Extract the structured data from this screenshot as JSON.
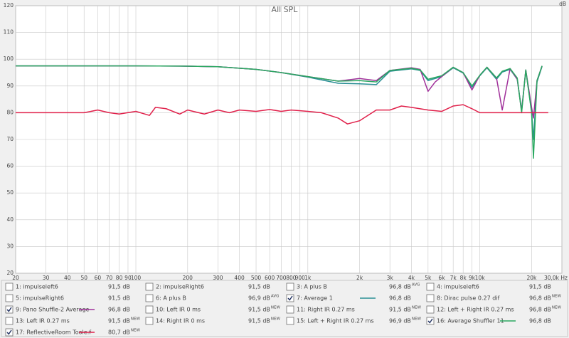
{
  "chart_data": {
    "type": "line",
    "title": "All SPL",
    "y_label": "dB",
    "xscale": "log",
    "grid": true,
    "xlim": [
      20,
      30000
    ],
    "ylim": [
      20,
      120
    ],
    "yticks": [
      20,
      30,
      40,
      50,
      60,
      70,
      80,
      90,
      100,
      110,
      120
    ],
    "xticks": [
      20,
      30,
      40,
      50,
      60,
      70,
      80,
      90,
      100,
      200,
      300,
      400,
      500,
      600,
      700,
      800,
      900,
      {
        "value": 1000,
        "label": "1k"
      },
      {
        "value": 2000,
        "label": "2k"
      },
      {
        "value": 3000,
        "label": "3k"
      },
      {
        "value": 4000,
        "label": "4k"
      },
      {
        "value": 5000,
        "label": "5k"
      },
      {
        "value": 6000,
        "label": "6k"
      },
      {
        "value": 7000,
        "label": "7k"
      },
      {
        "value": 8000,
        "label": "8k"
      },
      {
        "value": 9000,
        "label": "9k"
      },
      {
        "value": 10000,
        "label": "10k"
      },
      {
        "value": 20000,
        "label": "20k"
      },
      {
        "value": 30000,
        "label": "30,0k Hz"
      }
    ],
    "series": [
      {
        "name": "1: impulseleft6",
        "color": "#2a9a9a",
        "checked": false,
        "value": 91.5,
        "value_label": "91,5 dB"
      },
      {
        "name": "2: impulseRight6",
        "color": "#e03c5a",
        "checked": false,
        "value": 91.5,
        "value_label": "91,5 dB"
      },
      {
        "name": "3: A plus B",
        "color": "#c040c0",
        "checked": false,
        "value": 96.8,
        "value_label": "96,8 dB",
        "tag": "AVG"
      },
      {
        "name": "4: impulseleft6",
        "color": "#2aa02a",
        "checked": false,
        "value": 91.5,
        "value_label": "91,5 dB"
      },
      {
        "name": "5: impulseRight6",
        "color": "#9a9a9a",
        "checked": false,
        "value": 91.5,
        "value_label": "91,5 dB"
      },
      {
        "name": "6: A plus B",
        "color": "#8a3c3c",
        "checked": false,
        "value": 96.9,
        "value_label": "96,9 dB",
        "tag": "AVG"
      },
      {
        "name": "7: Average 1",
        "color": "#2a8f95",
        "checked": true,
        "value": 96.8,
        "value_label": "96,8 dB",
        "x": [
          20,
          100,
          200,
          300,
          500,
          700,
          1000,
          1500,
          2000,
          2500,
          3000,
          4000,
          4500,
          5000,
          5500,
          6000,
          7000,
          8000,
          9000,
          10000,
          11000,
          12500,
          13500,
          15000,
          16500,
          17500,
          18500,
          20000,
          20500,
          21500,
          23000
        ],
        "values": [
          97.5,
          97.5,
          97.4,
          97.2,
          96.2,
          95,
          93.3,
          91,
          90.8,
          90.5,
          95.5,
          96.4,
          95.8,
          92,
          92.8,
          93.5,
          96.8,
          94.8,
          89.5,
          93.8,
          96.8,
          92.5,
          95.2,
          96.2,
          92.5,
          81,
          95.8,
          80.5,
          70,
          91.5,
          97.3
        ]
      },
      {
        "name": "8: Dirac pulse 0.27 dif",
        "color": "#8a8a8a",
        "checked": false,
        "value": 96.8,
        "value_label": "96,8 dB",
        "tag": "NEW"
      },
      {
        "name": "9: Pano Shuffle-2 Average",
        "color": "#a0309a",
        "checked": true,
        "value": 96.8,
        "value_label": "96,8 dB",
        "x": [
          20,
          100,
          200,
          300,
          500,
          700,
          1000,
          1500,
          2000,
          2500,
          3000,
          4000,
          4500,
          5000,
          5500,
          6000,
          7000,
          8000,
          9000,
          10000,
          11000,
          12500,
          13500,
          15000,
          16500,
          17500,
          18500,
          20000,
          20500,
          21500,
          23000
        ],
        "values": [
          97.5,
          97.5,
          97.4,
          97.2,
          96.2,
          95,
          93.5,
          91.8,
          92.8,
          92,
          95.8,
          96.8,
          96.2,
          88,
          91.5,
          93.5,
          97,
          95,
          88.5,
          94,
          97,
          93,
          81,
          96.5,
          92.5,
          80.5,
          96,
          82,
          78,
          92,
          97.5
        ]
      },
      {
        "name": "10: Left IR 0 ms",
        "color": "#e02040",
        "checked": false,
        "value": 91.5,
        "value_label": "91,5 dB",
        "tag": "NEW"
      },
      {
        "name": "11: Right IR 0.27 ms",
        "color": "#202080",
        "checked": false,
        "value": 91.5,
        "value_label": "91,5 dB",
        "tag": "NEW"
      },
      {
        "name": "12: Left + Right IR 0.27 ms",
        "color": "#a040c0",
        "checked": false,
        "value": 96.8,
        "value_label": "96,8 dB",
        "tag": "NEW"
      },
      {
        "name": "13: Left IR 0.27 ms",
        "color": "#d09020",
        "checked": false,
        "value": 91.5,
        "value_label": "91,5 dB",
        "tag": "NEW"
      },
      {
        "name": "14: Right IR 0 ms",
        "color": "#3c3cd0",
        "checked": false,
        "value": 91.5,
        "value_label": "91,5 dB",
        "tag": "NEW"
      },
      {
        "name": "15: Left + Right IR 0.27 ms",
        "color": "#e02850",
        "checked": false,
        "value": 96.9,
        "value_label": "96,9 dB",
        "tag": "NEW"
      },
      {
        "name": "16: Average Shuffler 11",
        "color": "#2aa860",
        "checked": true,
        "value": 96.8,
        "value_label": "96,8 dB",
        "x": [
          20,
          100,
          200,
          300,
          500,
          700,
          1000,
          1500,
          2000,
          2500,
          3000,
          4000,
          4500,
          5000,
          5500,
          6000,
          7000,
          8000,
          9000,
          10000,
          11000,
          12500,
          13500,
          15000,
          16500,
          17500,
          18500,
          20000,
          20500,
          21500,
          23000
        ],
        "values": [
          97.5,
          97.5,
          97.4,
          97.2,
          96.2,
          95,
          93.5,
          91.8,
          92,
          91.5,
          95.8,
          96.6,
          96,
          92.5,
          93.2,
          93.8,
          97,
          95,
          90,
          94,
          97,
          93,
          95.5,
          96.5,
          93,
          80,
          96,
          80,
          63,
          92,
          97.5
        ]
      },
      {
        "name": "17: ReflectiveRoom Toole.f",
        "color": "#e0204a",
        "checked": true,
        "value": 80.7,
        "value_label": "80,7 dB",
        "tag": "NEW",
        "x": [
          20,
          50,
          60,
          70,
          80,
          100,
          120,
          130,
          150,
          180,
          200,
          250,
          300,
          350,
          400,
          500,
          600,
          700,
          800,
          1000,
          1200,
          1500,
          1700,
          2000,
          2300,
          2500,
          3000,
          3500,
          4000,
          5000,
          6000,
          7000,
          8000,
          9000,
          10000,
          15000,
          25000
        ],
        "values": [
          80,
          80,
          81,
          80,
          79.5,
          80.5,
          79,
          82,
          81.5,
          79.5,
          81,
          79.5,
          81,
          80,
          81,
          80.5,
          81.2,
          80.5,
          81,
          80.5,
          80,
          78,
          75.8,
          77,
          79.5,
          81,
          81,
          82.5,
          82,
          81,
          80.5,
          82.5,
          83,
          81.5,
          80,
          80,
          80
        ]
      }
    ]
  }
}
